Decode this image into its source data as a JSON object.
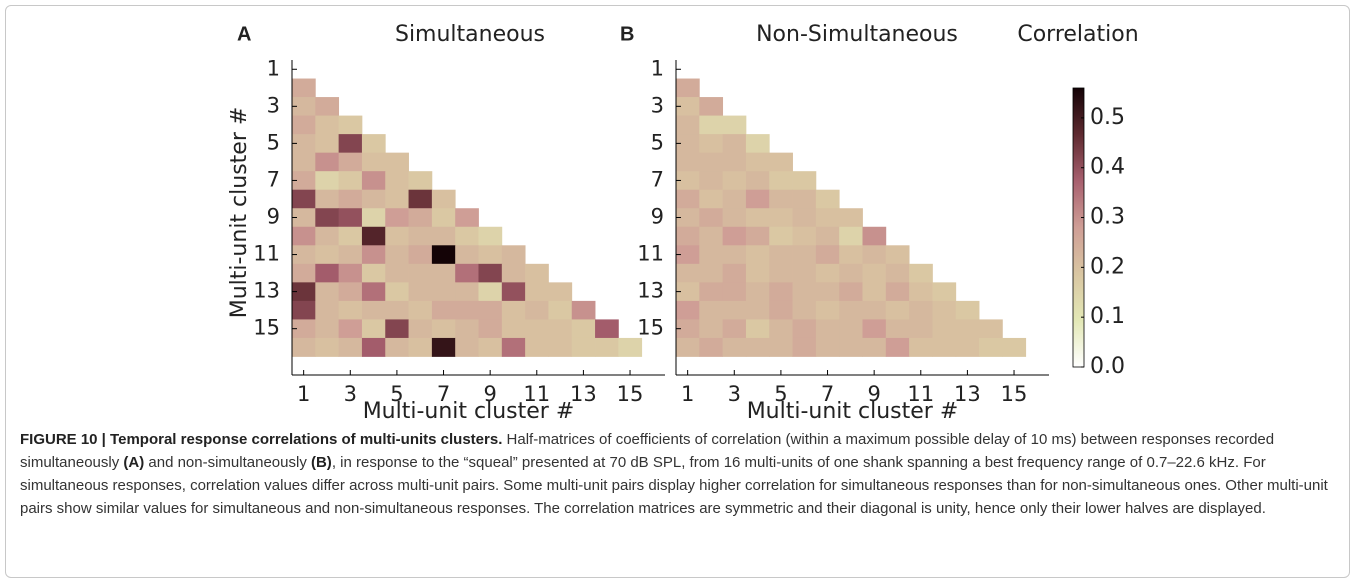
{
  "chart_data": [
    {
      "type": "heatmap",
      "panel": "A",
      "title": "Simultaneous",
      "xlabel": "Multi-unit cluster #",
      "ylabel": "Multi-unit cluster #",
      "x": [
        1,
        2,
        3,
        4,
        5,
        6,
        7,
        8,
        9,
        10,
        11,
        12,
        13,
        14,
        15
      ],
      "y": [
        2,
        3,
        4,
        5,
        6,
        7,
        8,
        9,
        10,
        11,
        12,
        13,
        14,
        15,
        16
      ],
      "z": [
        [
          0.25
        ],
        [
          0.22,
          0.25
        ],
        [
          0.25,
          0.2,
          0.18
        ],
        [
          0.22,
          0.2,
          0.42,
          0.18
        ],
        [
          0.22,
          0.3,
          0.25,
          0.2,
          0.2
        ],
        [
          0.25,
          0.15,
          0.18,
          0.3,
          0.2,
          0.18
        ],
        [
          0.42,
          0.22,
          0.25,
          0.22,
          0.2,
          0.45,
          0.2
        ],
        [
          0.22,
          0.42,
          0.4,
          0.15,
          0.28,
          0.25,
          0.18,
          0.28
        ],
        [
          0.3,
          0.22,
          0.18,
          0.48,
          0.2,
          0.22,
          0.22,
          0.18,
          0.15
        ],
        [
          0.22,
          0.2,
          0.22,
          0.3,
          0.22,
          0.25,
          0.56,
          0.22,
          0.2,
          0.22
        ],
        [
          0.25,
          0.38,
          0.3,
          0.18,
          0.22,
          0.22,
          0.22,
          0.35,
          0.42,
          0.22,
          0.2
        ],
        [
          0.45,
          0.22,
          0.25,
          0.35,
          0.18,
          0.22,
          0.22,
          0.22,
          0.15,
          0.4,
          0.2,
          0.2
        ],
        [
          0.42,
          0.22,
          0.2,
          0.22,
          0.22,
          0.2,
          0.25,
          0.25,
          0.25,
          0.2,
          0.22,
          0.18,
          0.3
        ],
        [
          0.25,
          0.22,
          0.28,
          0.18,
          0.42,
          0.22,
          0.2,
          0.22,
          0.25,
          0.2,
          0.2,
          0.2,
          0.18,
          0.38
        ],
        [
          0.22,
          0.2,
          0.22,
          0.38,
          0.22,
          0.2,
          0.52,
          0.22,
          0.2,
          0.35,
          0.2,
          0.2,
          0.18,
          0.18,
          0.15
        ]
      ],
      "xlim": [
        0.5,
        16.5
      ],
      "ylim": [
        0.5,
        17.5
      ],
      "yreverse": true,
      "xticks": [
        1,
        3,
        5,
        7,
        9,
        11,
        13,
        15
      ],
      "yticks": [
        1,
        3,
        5,
        7,
        9,
        11,
        13,
        15
      ]
    },
    {
      "type": "heatmap",
      "panel": "B",
      "title": "Non-Simultaneous",
      "xlabel": "Multi-unit cluster #",
      "x": [
        1,
        2,
        3,
        4,
        5,
        6,
        7,
        8,
        9,
        10,
        11,
        12,
        13,
        14,
        15
      ],
      "y": [
        2,
        3,
        4,
        5,
        6,
        7,
        8,
        9,
        10,
        11,
        12,
        13,
        14,
        15,
        16
      ],
      "z": [
        [
          0.25
        ],
        [
          0.2,
          0.25
        ],
        [
          0.22,
          0.15,
          0.15
        ],
        [
          0.22,
          0.2,
          0.22,
          0.15
        ],
        [
          0.22,
          0.22,
          0.22,
          0.2,
          0.2
        ],
        [
          0.2,
          0.22,
          0.2,
          0.22,
          0.18,
          0.18
        ],
        [
          0.25,
          0.2,
          0.22,
          0.28,
          0.22,
          0.22,
          0.18
        ],
        [
          0.22,
          0.25,
          0.22,
          0.2,
          0.2,
          0.22,
          0.2,
          0.2
        ],
        [
          0.25,
          0.22,
          0.28,
          0.25,
          0.18,
          0.2,
          0.22,
          0.15,
          0.3
        ],
        [
          0.28,
          0.22,
          0.22,
          0.2,
          0.22,
          0.22,
          0.25,
          0.2,
          0.22,
          0.2
        ],
        [
          0.22,
          0.22,
          0.25,
          0.2,
          0.22,
          0.22,
          0.2,
          0.22,
          0.2,
          0.22,
          0.18
        ],
        [
          0.2,
          0.25,
          0.25,
          0.22,
          0.25,
          0.22,
          0.22,
          0.25,
          0.2,
          0.25,
          0.2,
          0.18
        ],
        [
          0.28,
          0.22,
          0.22,
          0.22,
          0.25,
          0.22,
          0.2,
          0.22,
          0.22,
          0.2,
          0.22,
          0.2,
          0.18
        ],
        [
          0.25,
          0.22,
          0.25,
          0.18,
          0.22,
          0.25,
          0.22,
          0.22,
          0.28,
          0.22,
          0.22,
          0.2,
          0.2,
          0.2
        ],
        [
          0.22,
          0.25,
          0.22,
          0.22,
          0.22,
          0.25,
          0.22,
          0.22,
          0.22,
          0.28,
          0.2,
          0.2,
          0.2,
          0.18,
          0.18
        ]
      ],
      "xlim": [
        0.5,
        16.5
      ],
      "ylim": [
        0.5,
        17.5
      ],
      "yreverse": true,
      "xticks": [
        1,
        3,
        5,
        7,
        9,
        11,
        13,
        15
      ],
      "yticks": [
        1,
        3,
        5,
        7,
        9,
        11,
        13,
        15
      ]
    }
  ],
  "colorbar": {
    "title": "Correlation",
    "lim": [
      0,
      0.56
    ],
    "ticks": [
      {
        "value": 0,
        "label": "0.0"
      },
      0.1,
      0.2,
      0.3,
      0.4,
      0.5
    ],
    "colormap": [
      "#ffffff",
      "#e3e8b6",
      "#d9c6a2",
      "#cf9e96",
      "#a8606f",
      "#5e2a30",
      "#140306"
    ]
  },
  "caption": {
    "segments": [
      {
        "text": "FIGURE 10 | Temporal response correlations of multi-units clusters.",
        "bold": true
      },
      {
        "text": " Half-matrices of coefficients of correlation (within a maximum possible delay of 10 ms) between responses recorded simultaneously ",
        "bold": false
      },
      {
        "text": "(A)",
        "bold": true
      },
      {
        "text": " and non-simultaneously ",
        "bold": false
      },
      {
        "text": "(B)",
        "bold": true
      },
      {
        "text": ", in response to the “squeal” presented at 70 dB SPL, from 16 multi-units of one shank spanning a best frequency range of 0.7–22.6 kHz. For simultaneous responses, correlation values differ across multi-unit pairs. Some multi-unit pairs display higher correlation for simultaneous responses than for non-simultaneous ones. Other multi-unit pairs show similar values for simultaneous and non-simultaneous responses. The correlation matrices are symmetric and their diagonal is unity, hence only their lower halves are displayed.",
        "bold": false
      }
    ]
  }
}
